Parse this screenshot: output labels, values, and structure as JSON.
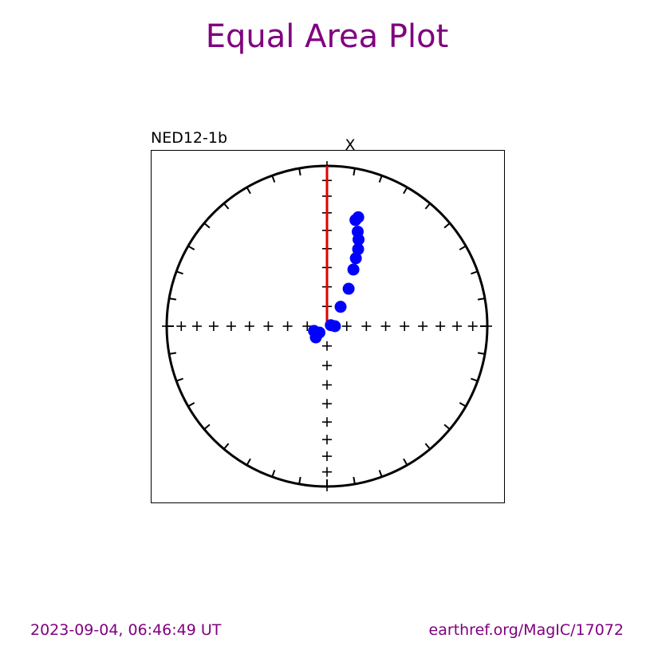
{
  "title": "Equal Area Plot",
  "footer": {
    "timestamp": "2023-09-04, 06:46:49 UT",
    "source": "earthref.org/MagIC/17072"
  },
  "colors": {
    "title": "#800080",
    "data_points": "#0000ff",
    "mean_direction": "#e00000",
    "axes": "#000000"
  },
  "chart_data": {
    "type": "scatter",
    "projection": "equal-area",
    "specimen_label": "NED12-1b",
    "axis_label": "X",
    "series": [
      {
        "points": [
          {
            "dec": 16,
            "inc": 30
          },
          {
            "dec": 15,
            "inc": 32
          },
          {
            "dec": 18,
            "inc": 38
          },
          {
            "dec": 20,
            "inc": 42
          },
          {
            "dec": 22,
            "inc": 47
          },
          {
            "dec": 23,
            "inc": 52
          },
          {
            "dec": 25,
            "inc": 58
          },
          {
            "dec": 30,
            "inc": 68
          },
          {
            "dec": 35,
            "inc": 78
          },
          {
            "dec": 75,
            "inc": 88
          },
          {
            "dec": 90,
            "inc": 86
          },
          {
            "dec": 250,
            "inc": 83
          },
          {
            "dec": 225,
            "inc": 82
          },
          {
            "dec": 230,
            "inc": 85
          }
        ]
      }
    ],
    "mean_line": {
      "dec": 0,
      "from_inc": 90,
      "to_inc": 0
    }
  }
}
